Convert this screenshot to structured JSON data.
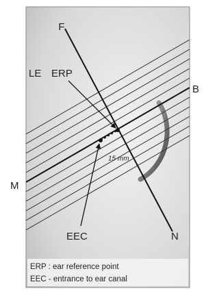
{
  "labels": {
    "f": "F",
    "le": "LE",
    "erp": "ERP",
    "b": "B",
    "m": "M",
    "n": "N",
    "eec": "EEC",
    "distance": "15 mm"
  },
  "legend": [
    "ERP : ear reference point",
    "EEC - entrance to ear canal"
  ]
}
